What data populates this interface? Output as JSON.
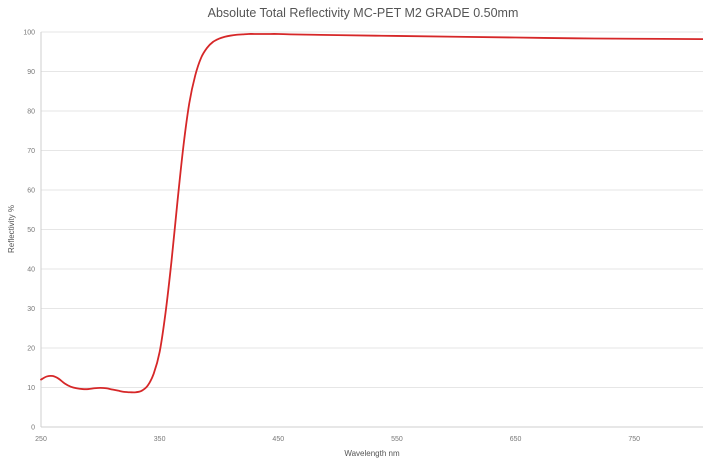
{
  "chart_data": {
    "type": "line",
    "title": "Absolute Total Reflectivity MC-PET M2 GRADE 0.50mm",
    "xlabel": "Wavelength nm",
    "ylabel": "Reflectivity %",
    "xlim": [
      250,
      808
    ],
    "ylim": [
      0,
      100
    ],
    "xticks": [
      250,
      350,
      450,
      550,
      650,
      750
    ],
    "yticks": [
      0,
      10,
      20,
      30,
      40,
      50,
      60,
      70,
      80,
      90,
      100
    ],
    "grid": true,
    "legend": "none",
    "series": [
      {
        "color": "#d62728",
        "x": [
          250,
          255,
          260,
          265,
          270,
          275,
          280,
          285,
          290,
          295,
          300,
          305,
          310,
          315,
          320,
          325,
          330,
          335,
          340,
          345,
          350,
          355,
          360,
          365,
          370,
          375,
          380,
          385,
          390,
          395,
          400,
          405,
          410,
          415,
          420,
          425,
          430,
          440,
          450,
          460,
          480,
          500,
          550,
          600,
          650,
          700,
          750,
          808
        ],
        "y": [
          12.0,
          12.8,
          12.9,
          12.2,
          11.0,
          10.2,
          9.8,
          9.6,
          9.6,
          9.8,
          9.9,
          9.8,
          9.5,
          9.2,
          8.9,
          8.8,
          8.8,
          9.2,
          10.5,
          13.5,
          19,
          29,
          42,
          57,
          71,
          82,
          89,
          93.5,
          96,
          97.5,
          98.3,
          98.8,
          99.1,
          99.3,
          99.4,
          99.5,
          99.5,
          99.5,
          99.5,
          99.4,
          99.3,
          99.2,
          99.0,
          98.8,
          98.6,
          98.4,
          98.3,
          98.2
        ]
      }
    ]
  }
}
